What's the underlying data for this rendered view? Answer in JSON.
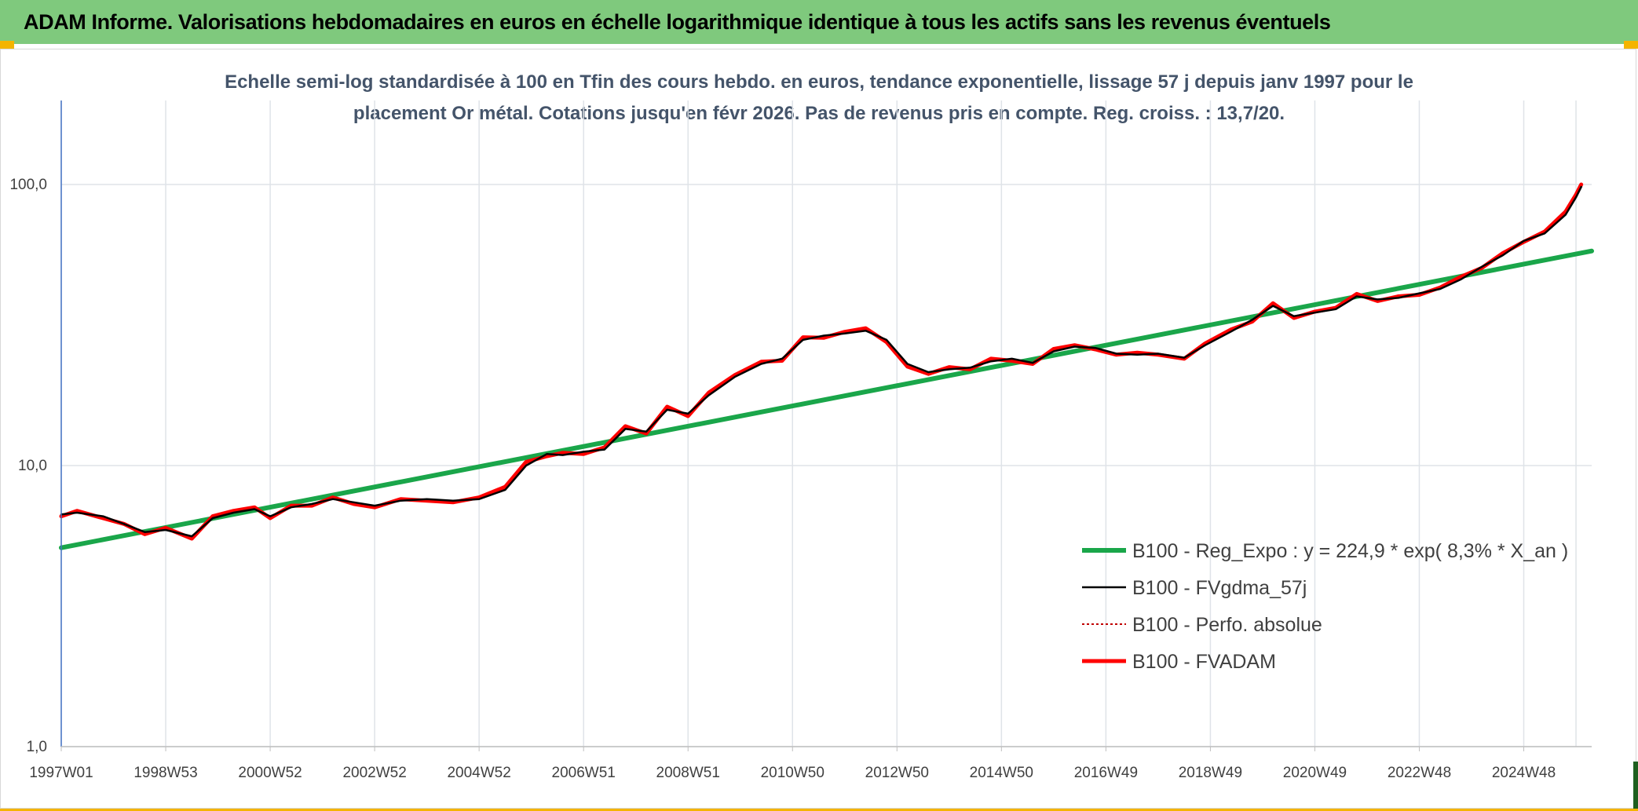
{
  "header": {
    "title": "ADAM Informe. Valorisations hebdomadaires en euros en échelle logarithmique identique à tous les actifs sans les revenus éventuels"
  },
  "colors": {
    "header_bg": "#7fc97d",
    "regression": "#1aa64a",
    "smoothed": "#000000",
    "perf_absolue": "#c00000",
    "fvadam": "#ff0000",
    "grid": "#dfe3e8",
    "axis": "#4472c4"
  },
  "chart_data": {
    "type": "line",
    "subtitle_line1": "Echelle semi-log standardisée à 100 en Tfin des cours hebdo. en euros, tendance exponentielle, lissage 57 j depuis janv 1997 pour le",
    "subtitle_line2": "placement Or métal. Cotations jusqu'en févr 2026. Pas de revenus pris en compte. Reg. croiss. : 13,7/20.",
    "y_scale": "log",
    "ylim": [
      1,
      200
    ],
    "xlim": [
      1997.0,
      2026.3
    ],
    "grid": true,
    "legend_position": "bottom-right",
    "y_ticks": [
      {
        "value": 1,
        "label": "1,0"
      },
      {
        "value": 10,
        "label": "10,0"
      },
      {
        "value": 100,
        "label": "100,0"
      }
    ],
    "x_ticks": [
      {
        "value": 1997.0,
        "label": "1997W01"
      },
      {
        "value": 1999.0,
        "label": "1998W53"
      },
      {
        "value": 2001.0,
        "label": "2000W52"
      },
      {
        "value": 2003.0,
        "label": "2002W52"
      },
      {
        "value": 2005.0,
        "label": "2004W52"
      },
      {
        "value": 2007.0,
        "label": "2006W51"
      },
      {
        "value": 2009.0,
        "label": "2008W51"
      },
      {
        "value": 2011.0,
        "label": "2010W50"
      },
      {
        "value": 2013.0,
        "label": "2012W50"
      },
      {
        "value": 2015.0,
        "label": "2014W50"
      },
      {
        "value": 2017.0,
        "label": "2016W49"
      },
      {
        "value": 2019.0,
        "label": "2018W49"
      },
      {
        "value": 2021.0,
        "label": "2020W49"
      },
      {
        "value": 2023.0,
        "label": "2022W48"
      },
      {
        "value": 2025.0,
        "label": "2024W48"
      }
    ],
    "x_extra_gridlines": [
      2026.0
    ],
    "series": [
      {
        "name": "B100 - Reg_Expo : y = 224,9 * exp( 8,3% *  X_an )",
        "key": "regression",
        "style": "thick",
        "x": [
          1997.0,
          2026.3
        ],
        "y": [
          5.1,
          58
        ]
      },
      {
        "name": "B100 - FVgdma_57j",
        "key": "smoothed",
        "style": "thin",
        "x": [
          1997.0,
          1997.3,
          1997.8,
          1998.2,
          1998.6,
          1999.0,
          1999.5,
          1999.9,
          2000.3,
          2000.7,
          2001.0,
          2001.4,
          2001.8,
          2002.2,
          2002.6,
          2003.0,
          2003.5,
          2004.0,
          2004.5,
          2005.0,
          2005.5,
          2005.9,
          2006.3,
          2006.6,
          2007.0,
          2007.4,
          2007.8,
          2008.2,
          2008.6,
          2009.0,
          2009.4,
          2009.9,
          2010.4,
          2010.8,
          2011.2,
          2011.6,
          2012.0,
          2012.4,
          2012.8,
          2013.2,
          2013.6,
          2014.0,
          2014.4,
          2014.8,
          2015.2,
          2015.6,
          2016.0,
          2016.4,
          2016.8,
          2017.2,
          2017.6,
          2018.0,
          2018.5,
          2018.9,
          2019.4,
          2019.8,
          2020.2,
          2020.6,
          2021.0,
          2021.4,
          2021.8,
          2022.2,
          2022.6,
          2023.0,
          2023.4,
          2023.8,
          2024.2,
          2024.6,
          2025.0,
          2025.4,
          2025.8,
          2026.0,
          2026.1
        ],
        "y": [
          6.7,
          6.8,
          6.6,
          6.2,
          5.8,
          5.9,
          5.6,
          6.5,
          6.8,
          7.0,
          6.6,
          7.1,
          7.3,
          7.6,
          7.4,
          7.2,
          7.5,
          7.6,
          7.5,
          7.6,
          8.2,
          10.0,
          11.0,
          10.9,
          11.2,
          11.4,
          13.5,
          13.2,
          15.8,
          15.3,
          17.8,
          20.7,
          23.0,
          24.0,
          28.0,
          29.0,
          29.5,
          30.2,
          28.0,
          23.0,
          21.5,
          22.0,
          22.3,
          23.5,
          24.0,
          23.2,
          25.5,
          26.5,
          26.2,
          25.0,
          24.8,
          25.0,
          24.2,
          26.8,
          30.0,
          33.0,
          37.0,
          34.0,
          35.0,
          36.0,
          40.0,
          39.0,
          39.5,
          41.0,
          42.5,
          46.0,
          51.0,
          56.0,
          63.0,
          67.0,
          78.0,
          90.0,
          98.0
        ]
      },
      {
        "name": "B100 - Perfo. absolue",
        "key": "perf_absolue",
        "style": "dotted",
        "x": [],
        "y": []
      },
      {
        "name": "B100 - FVADAM",
        "key": "fvadam",
        "style": "thick",
        "x": [
          1997.0,
          1997.3,
          1997.8,
          1998.2,
          1998.6,
          1999.0,
          1999.5,
          1999.9,
          2000.3,
          2000.7,
          2001.0,
          2001.4,
          2001.8,
          2002.2,
          2002.6,
          2003.0,
          2003.5,
          2004.0,
          2004.5,
          2005.0,
          2005.5,
          2005.9,
          2006.3,
          2006.6,
          2007.0,
          2007.4,
          2007.8,
          2008.2,
          2008.6,
          2009.0,
          2009.4,
          2009.9,
          2010.4,
          2010.8,
          2011.2,
          2011.6,
          2012.0,
          2012.4,
          2012.8,
          2013.2,
          2013.6,
          2014.0,
          2014.4,
          2014.8,
          2015.2,
          2015.6,
          2016.0,
          2016.4,
          2016.8,
          2017.2,
          2017.6,
          2018.0,
          2018.5,
          2018.9,
          2019.4,
          2019.8,
          2020.2,
          2020.6,
          2021.0,
          2021.4,
          2021.8,
          2022.2,
          2022.6,
          2023.0,
          2023.4,
          2023.8,
          2024.2,
          2024.6,
          2025.0,
          2025.4,
          2025.8,
          2026.0,
          2026.1
        ],
        "y": [
          6.6,
          6.9,
          6.5,
          6.2,
          5.7,
          6.0,
          5.5,
          6.6,
          6.9,
          7.1,
          6.5,
          7.2,
          7.2,
          7.7,
          7.3,
          7.1,
          7.6,
          7.5,
          7.4,
          7.7,
          8.4,
          10.3,
          10.8,
          11.1,
          11.0,
          11.6,
          13.8,
          13.0,
          16.2,
          15.0,
          18.2,
          21.0,
          23.4,
          23.6,
          28.6,
          28.5,
          29.9,
          30.8,
          27.5,
          22.5,
          21.2,
          22.4,
          22.0,
          24.0,
          23.6,
          23.0,
          26.0,
          26.8,
          25.9,
          24.8,
          25.2,
          24.8,
          24.0,
          27.2,
          30.5,
          32.5,
          37.8,
          33.5,
          35.3,
          36.4,
          40.8,
          38.5,
          40.0,
          40.5,
          43.0,
          47.0,
          50.5,
          57.0,
          62.5,
          68.0,
          80.0,
          92.0,
          100.0
        ]
      }
    ]
  }
}
